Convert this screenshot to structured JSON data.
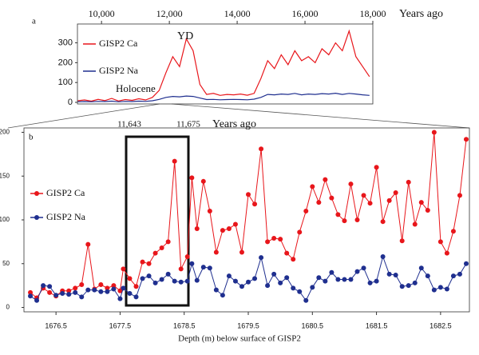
{
  "chart_data": [
    {
      "type": "line",
      "panel": "a",
      "x_label": "Years ago",
      "annotations": [
        "YD",
        "Holocene"
      ],
      "x": [
        9300,
        9500,
        9700,
        9900,
        10100,
        10300,
        10500,
        10700,
        10900,
        11100,
        11300,
        11500,
        11700,
        11900,
        12100,
        12300,
        12500,
        12700,
        12900,
        13100,
        13300,
        13500,
        13700,
        13900,
        14100,
        14300,
        14500,
        14700,
        14900,
        15100,
        15300,
        15500,
        15700,
        15900,
        16100,
        16300,
        16500,
        16700,
        16900,
        17100,
        17300,
        17500,
        17700,
        17900
      ],
      "series": [
        {
          "name": "GISP2 Ca",
          "color": "#e8161b",
          "values": [
            8,
            12,
            6,
            15,
            9,
            20,
            7,
            14,
            10,
            18,
            12,
            25,
            60,
            150,
            230,
            180,
            320,
            260,
            90,
            40,
            45,
            35,
            40,
            38,
            42,
            36,
            45,
            120,
            210,
            170,
            240,
            190,
            260,
            210,
            230,
            200,
            270,
            240,
            300,
            260,
            360,
            230,
            180,
            130
          ]
        },
        {
          "name": "GISP2 Na",
          "color": "#1f2f8f",
          "values": [
            3,
            4,
            3,
            5,
            4,
            6,
            3,
            5,
            4,
            6,
            5,
            8,
            15,
            25,
            30,
            28,
            32,
            30,
            22,
            14,
            15,
            13,
            14,
            15,
            14,
            13,
            16,
            25,
            40,
            38,
            42,
            40,
            45,
            38,
            42,
            40,
            44,
            42,
            46,
            40,
            45,
            42,
            38,
            35
          ]
        }
      ],
      "xlim": [
        9290,
        18000
      ],
      "xticks": [
        {
          "value": 10000,
          "label": "10,000"
        },
        {
          "value": 12000,
          "label": "12,000"
        },
        {
          "value": 14000,
          "label": "14,000"
        },
        {
          "value": 16000,
          "label": "16,000"
        },
        {
          "value": 18000,
          "label": "18,000"
        }
      ],
      "ylim": [
        -8,
        395
      ],
      "yticks": [
        0,
        100,
        200,
        300
      ]
    },
    {
      "type": "line",
      "panel": "b",
      "x_label": "Depth (m) below surface of GISP2",
      "top_labels": [
        "11,643",
        "11,675",
        "Years ago"
      ],
      "markers": true,
      "x": [
        1676.1,
        1676.2,
        1676.3,
        1676.4,
        1676.5,
        1676.6,
        1676.7,
        1676.8,
        1676.9,
        1677.0,
        1677.1,
        1677.2,
        1677.3,
        1677.4,
        1677.5,
        1677.55,
        1677.65,
        1677.75,
        1677.85,
        1677.95,
        1678.05,
        1678.15,
        1678.25,
        1678.35,
        1678.45,
        1678.55,
        1678.62,
        1678.7,
        1678.8,
        1678.9,
        1679.0,
        1679.1,
        1679.2,
        1679.3,
        1679.4,
        1679.5,
        1679.6,
        1679.7,
        1679.8,
        1679.9,
        1680.0,
        1680.1,
        1680.2,
        1680.3,
        1680.4,
        1680.5,
        1680.6,
        1680.7,
        1680.8,
        1680.9,
        1681.0,
        1681.1,
        1681.2,
        1681.3,
        1681.4,
        1681.5,
        1681.6,
        1681.7,
        1681.8,
        1681.9,
        1682.0,
        1682.1,
        1682.2,
        1682.3,
        1682.4,
        1682.5,
        1682.6,
        1682.7,
        1682.8,
        1682.9
      ],
      "series": [
        {
          "name": "GISP2 Ca",
          "color": "#e8161b",
          "values": [
            17,
            11,
            22,
            17,
            13,
            19,
            19,
            22,
            26,
            72,
            21,
            26,
            22,
            25,
            19,
            44,
            33,
            24,
            52,
            50,
            62,
            68,
            75,
            167,
            44,
            58,
            148,
            90,
            144,
            110,
            63,
            88,
            90,
            95,
            63,
            129,
            118,
            181,
            75,
            79,
            78,
            62,
            55,
            86,
            110,
            138,
            120,
            146,
            125,
            106,
            99,
            141,
            100,
            128,
            119,
            160,
            98,
            122,
            131,
            76,
            143,
            95,
            120,
            111,
            200,
            75,
            62,
            87,
            128,
            192
          ]
        },
        {
          "name": "GISP2 Na",
          "color": "#1f2f8f",
          "values": [
            13,
            8,
            25,
            24,
            14,
            16,
            15,
            17,
            12,
            20,
            20,
            18,
            18,
            21,
            10,
            22,
            16,
            12,
            33,
            36,
            28,
            32,
            38,
            30,
            29,
            30,
            50,
            31,
            46,
            45,
            20,
            14,
            36,
            30,
            24,
            29,
            33,
            57,
            25,
            38,
            28,
            34,
            22,
            18,
            8,
            23,
            34,
            30,
            40,
            32,
            32,
            32,
            41,
            45,
            28,
            30,
            58,
            38,
            37,
            24,
            25,
            28,
            45,
            36,
            20,
            23,
            21,
            36,
            38,
            50
          ]
        }
      ],
      "xlim": [
        1676.0,
        1682.95
      ],
      "xticks": [
        1676.5,
        1677.5,
        1678.5,
        1679.5,
        1680.5,
        1681.5,
        1682.5
      ],
      "ylim": [
        -5,
        205
      ],
      "yticks": [
        0,
        50,
        100,
        150,
        200
      ]
    }
  ]
}
